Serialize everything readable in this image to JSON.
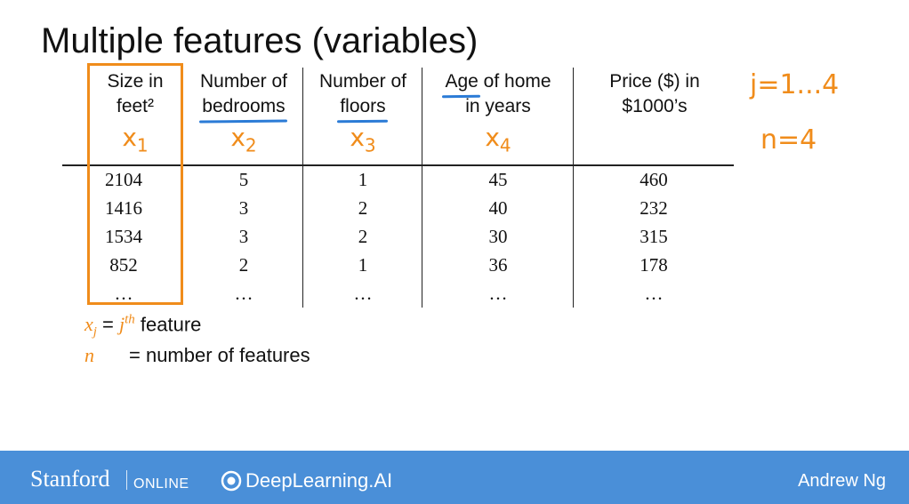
{
  "slide": {
    "title": "Multiple features (variables)"
  },
  "table": {
    "columns": [
      {
        "line1": "Size in",
        "line2": "feet²",
        "symbol": "x",
        "sub": "1"
      },
      {
        "line1": "Number of",
        "line2": "bedrooms",
        "symbol": "x",
        "sub": "2"
      },
      {
        "line1": "Number of",
        "line2": "floors",
        "symbol": "x",
        "sub": "3"
      },
      {
        "line1": "Age of home",
        "line2": "in years",
        "symbol": "x",
        "sub": "4"
      },
      {
        "line1": "Price ($) in",
        "line2": "$1000’s",
        "symbol": "",
        "sub": ""
      }
    ],
    "age_word": "Age",
    "age_rest": " of home",
    "rows": [
      [
        "2104",
        "5",
        "1",
        "45",
        "460"
      ],
      [
        "1416",
        "3",
        "2",
        "40",
        "232"
      ],
      [
        "1534",
        "3",
        "2",
        "30",
        "315"
      ],
      [
        "852",
        "2",
        "1",
        "36",
        "178"
      ],
      [
        "…",
        "…",
        "…",
        "…",
        "…"
      ]
    ]
  },
  "notes": {
    "j_range": "j=1...4",
    "n_value": "n=4"
  },
  "definitions": {
    "xj_var": "x",
    "xj_sub": "j",
    "xj_eq": " = ",
    "xj_j": "j",
    "xj_sup": "th",
    "xj_text": " feature",
    "n_var": "n",
    "n_text": "= number of features"
  },
  "footer": {
    "stanford": "Stanford",
    "online": "ONLINE",
    "deeplearning": "DeepLearning.AI",
    "author": "Andrew Ng"
  },
  "colors": {
    "accent": "#f08c1b",
    "underline": "#2b7bd6",
    "footer_bg": "#4a8fd8"
  }
}
